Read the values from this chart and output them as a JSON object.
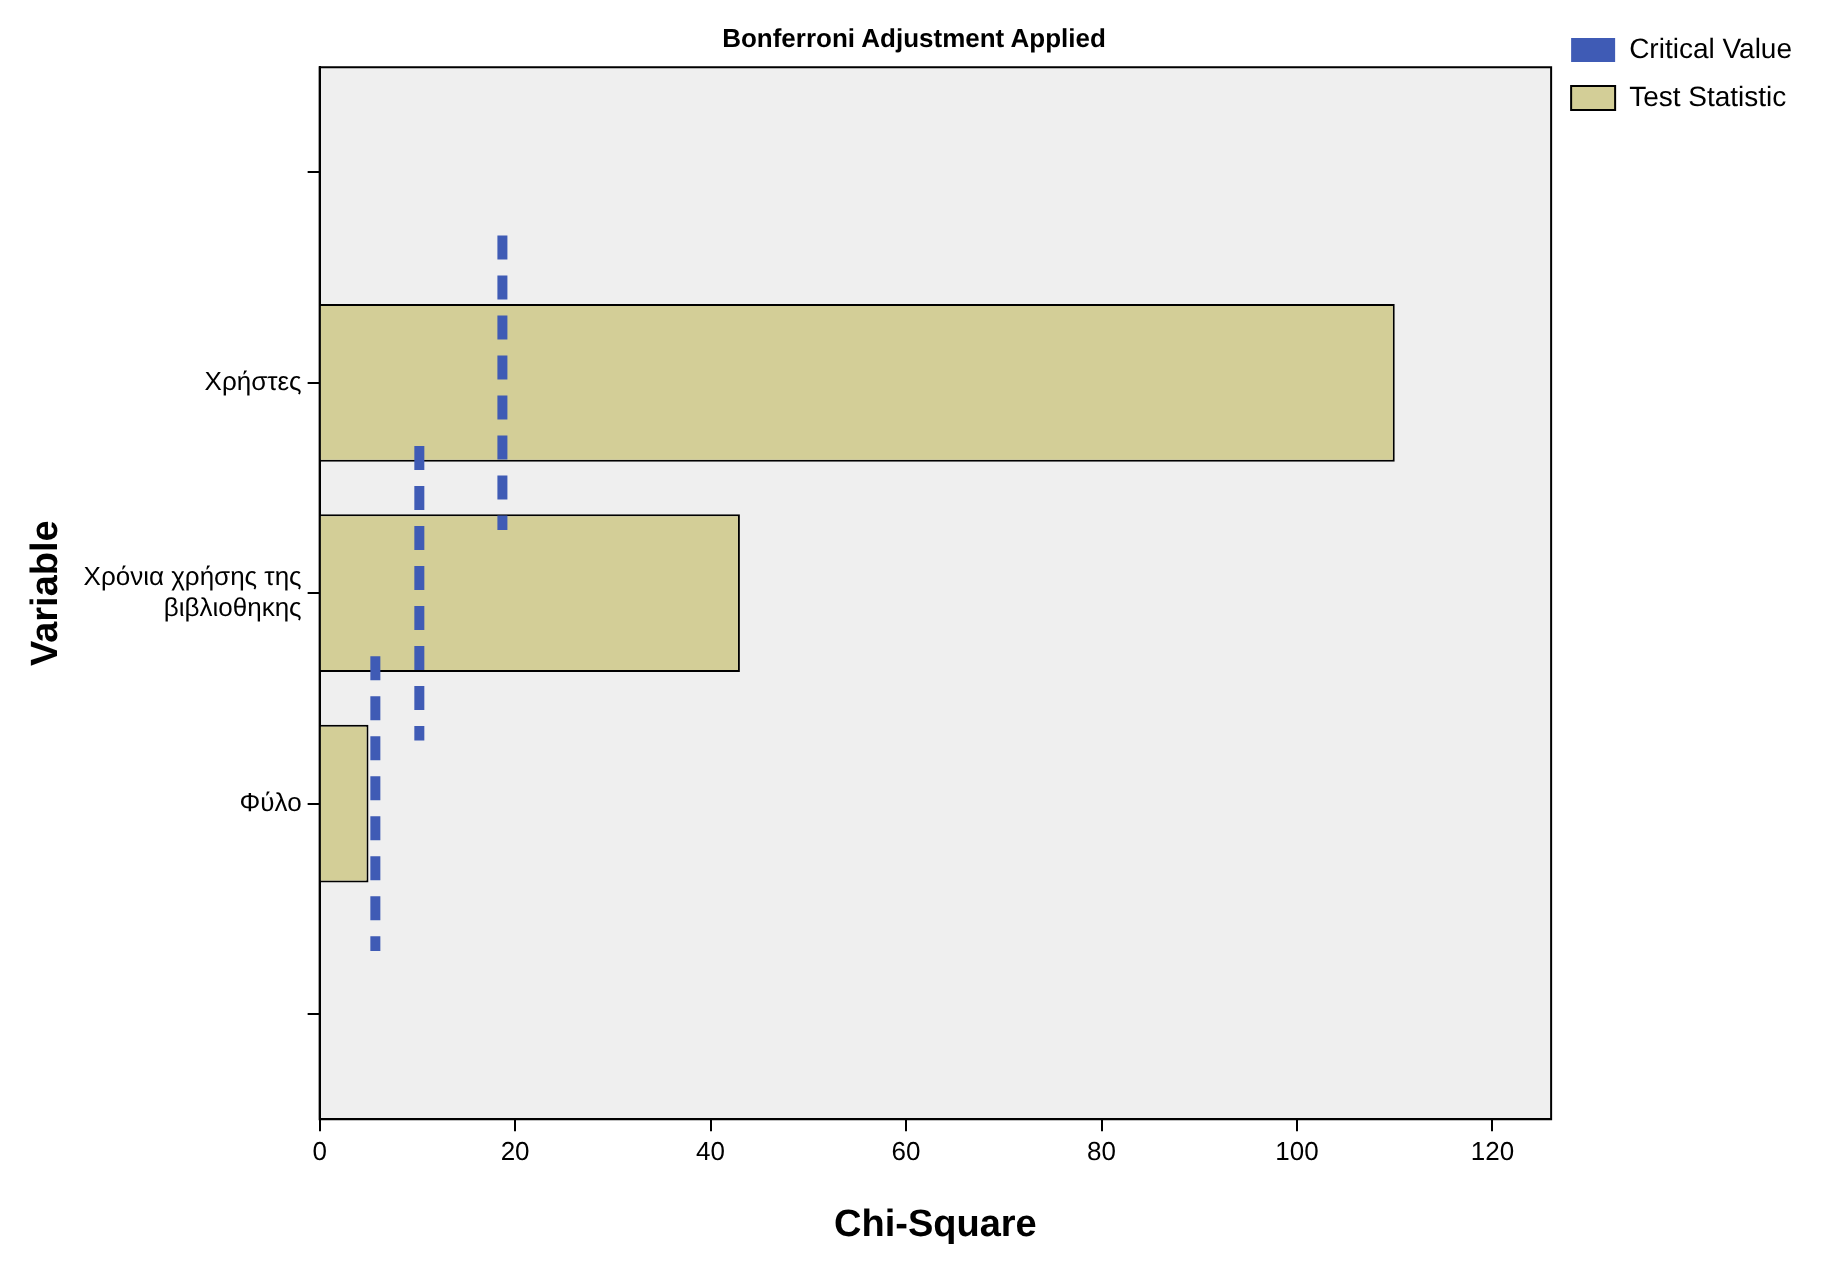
{
  "chart_data": {
    "type": "bar",
    "orientation": "horizontal",
    "title": "Bonferroni Adjustment Applied",
    "xlabel": "Chi-Square",
    "ylabel": "Variable",
    "categories": [
      null,
      "Χρήστες",
      "Χρόνια χρήσης της βιβλιοθηκης",
      "Φύλο",
      null
    ],
    "series": [
      {
        "name": "Test Statistic",
        "type": "bar",
        "color": "#d3ce97",
        "values": [
          null,
          110,
          43,
          5,
          null
        ]
      }
    ],
    "ref_lines": [
      {
        "axis": "x",
        "value": 18.7,
        "label": "Critical Value",
        "color": "#3f5bb5",
        "line_style": "dashed"
      },
      {
        "axis": "x",
        "value": 10.2,
        "color": "#3f5bb5",
        "line_style": "dashed"
      },
      {
        "axis": "x",
        "value": 5.7,
        "color": "#3f5bb5",
        "line_style": "dashed"
      }
    ],
    "xlim": [
      0,
      126
    ],
    "xticks": [
      0,
      20,
      40,
      60,
      80,
      100,
      120
    ],
    "grid": false,
    "legend": "top right"
  }
}
